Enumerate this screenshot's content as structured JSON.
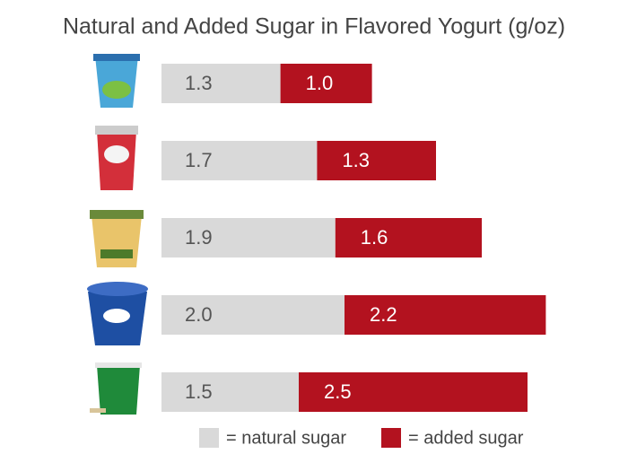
{
  "chart_data": {
    "type": "stacked-barh",
    "title": "Natural and Added Sugar in Flavored Yogurt (g/oz)",
    "categories": [
      null,
      null,
      null,
      null,
      null
    ],
    "series": [
      {
        "name": "= natural sugar",
        "color": "#d9d9d9",
        "values": [
          1.3,
          1.7,
          1.9,
          2.0,
          1.5
        ],
        "value_labels": [
          "1.3",
          "1.7",
          "1.9",
          "2.0",
          "1.5"
        ]
      },
      {
        "name": "= added sugar",
        "color": "#b3121f",
        "values": [
          1.0,
          1.3,
          1.6,
          2.2,
          2.5
        ],
        "value_labels": [
          "1.0",
          "1.3",
          "1.6",
          "2.2",
          "2.5"
        ]
      }
    ]
  }
}
